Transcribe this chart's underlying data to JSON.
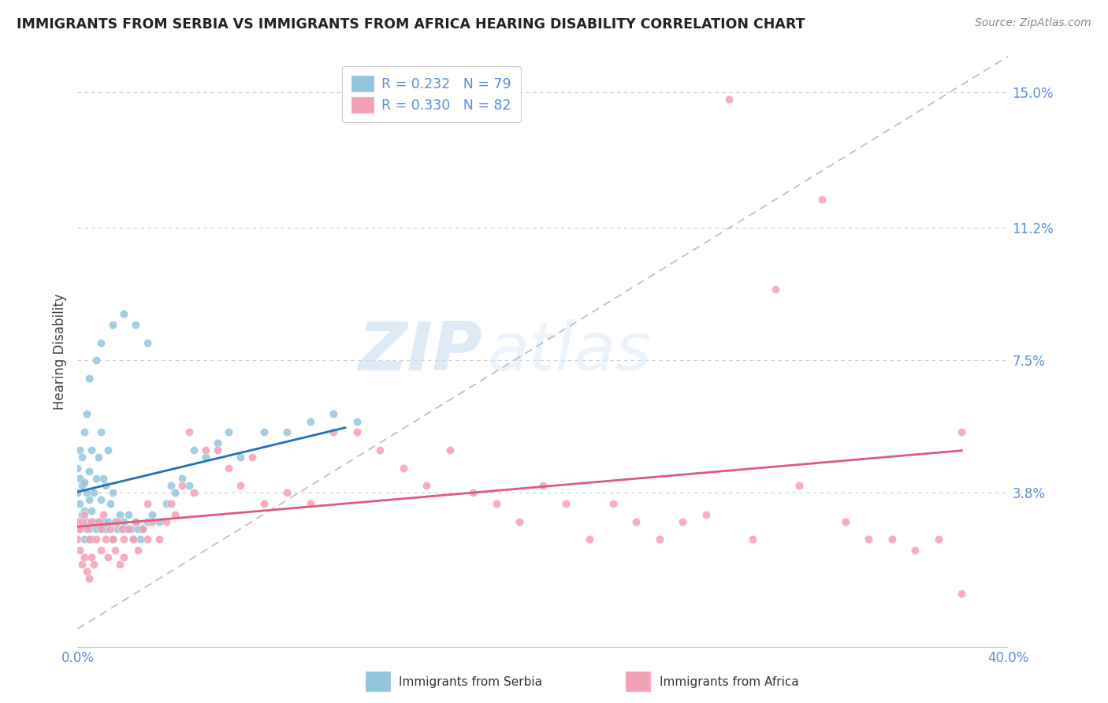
{
  "title": "IMMIGRANTS FROM SERBIA VS IMMIGRANTS FROM AFRICA HEARING DISABILITY CORRELATION CHART",
  "source": "Source: ZipAtlas.com",
  "ylabel": "Hearing Disability",
  "xlim": [
    0.0,
    0.4
  ],
  "ylim": [
    -0.005,
    0.16
  ],
  "y_tick_values": [
    0.038,
    0.075,
    0.112,
    0.15
  ],
  "y_tick_labels": [
    "3.8%",
    "7.5%",
    "11.2%",
    "15.0%"
  ],
  "serbia_color": "#92c5de",
  "africa_color": "#f4a0b5",
  "serbia_trendline_color": "#2171b5",
  "africa_trendline_color": "#e05a7a",
  "legend_serbia_label": "Immigrants from Serbia",
  "legend_africa_label": "Immigrants from Africa",
  "R_serbia": 0.232,
  "N_serbia": 79,
  "R_africa": 0.33,
  "N_africa": 82,
  "watermark_zip": "ZIP",
  "watermark_atlas": "atlas",
  "background_color": "#ffffff",
  "grid_color": "#cccccc",
  "tick_label_color": "#5b8dd9",
  "title_color": "#222222",
  "source_color": "#888888",
  "ylabel_color": "#444444",
  "diag_color": "#bbbbbb"
}
